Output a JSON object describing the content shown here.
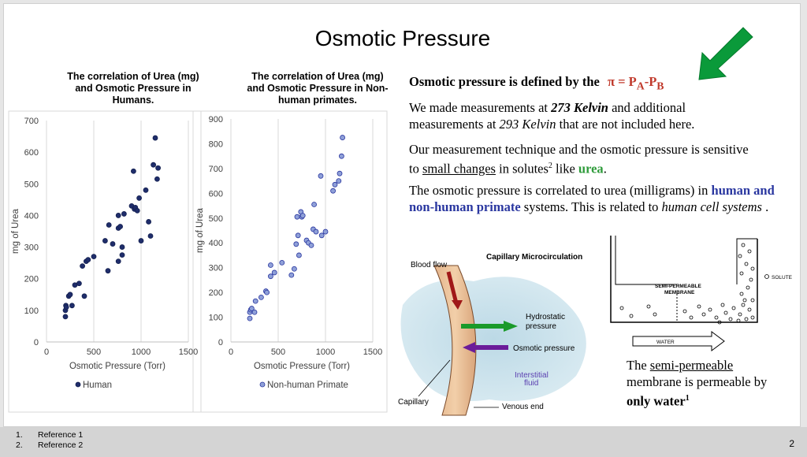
{
  "slide": {
    "title": "Osmotic Pressure",
    "page_number": "2"
  },
  "chart_data": [
    {
      "type": "scatter",
      "title": "The correlation of Urea (mg) and Osmotic Pressure in Humans.",
      "title_lines": [
        "The correlation of Urea (mg)",
        "and Osmotic Pressure in",
        "Humans."
      ],
      "xlabel": "Osmotic Pressure (Torr)",
      "ylabel": "mg of Urea",
      "xlim": [
        0,
        1500
      ],
      "ylim": [
        0,
        700
      ],
      "xticks": [
        0,
        500,
        1000,
        1500
      ],
      "yticks": [
        0,
        100,
        200,
        300,
        400,
        500,
        600,
        700
      ],
      "series": [
        {
          "name": "Human",
          "color": "#1f2d6b",
          "points": [
            [
              200,
              80
            ],
            [
              200,
              100
            ],
            [
              205,
              115
            ],
            [
              210,
              110
            ],
            [
              235,
              145
            ],
            [
              250,
              150
            ],
            [
              270,
              115
            ],
            [
              300,
              180
            ],
            [
              345,
              185
            ],
            [
              380,
              240
            ],
            [
              400,
              145
            ],
            [
              420,
              255
            ],
            [
              440,
              260
            ],
            [
              500,
              270
            ],
            [
              620,
              320
            ],
            [
              650,
              225
            ],
            [
              660,
              370
            ],
            [
              700,
              310
            ],
            [
              760,
              360
            ],
            [
              760,
              400
            ],
            [
              760,
              255
            ],
            [
              780,
              365
            ],
            [
              800,
              275
            ],
            [
              800,
              300
            ],
            [
              820,
              405
            ],
            [
              900,
              430
            ],
            [
              920,
              540
            ],
            [
              930,
              420
            ],
            [
              940,
              425
            ],
            [
              960,
              415
            ],
            [
              980,
              455
            ],
            [
              1000,
              320
            ],
            [
              1050,
              480
            ],
            [
              1080,
              380
            ],
            [
              1100,
              335
            ],
            [
              1130,
              560
            ],
            [
              1150,
              645
            ],
            [
              1170,
              515
            ],
            [
              1180,
              550
            ]
          ]
        }
      ]
    },
    {
      "type": "scatter",
      "title": "The correlation of Urea (mg) and Osmotic Pressure in Non-human primates.",
      "title_lines": [
        "The correlation of Urea (mg)",
        "and Osmotic Pressure in Non-",
        "human primates."
      ],
      "xlabel": "Osmotic Pressure (Torr)",
      "ylabel": "mg of Urea",
      "xlim": [
        0,
        1500
      ],
      "ylim": [
        0,
        900
      ],
      "xticks": [
        0,
        500,
        1000,
        1500
      ],
      "yticks": [
        0,
        100,
        200,
        300,
        400,
        500,
        600,
        700,
        800,
        900
      ],
      "series": [
        {
          "name": "Non-human Primate",
          "color": "#8fa0d8",
          "points": [
            [
              200,
              95
            ],
            [
              200,
              120
            ],
            [
              210,
              130
            ],
            [
              220,
              135
            ],
            [
              250,
              120
            ],
            [
              260,
              165
            ],
            [
              320,
              180
            ],
            [
              370,
              205
            ],
            [
              380,
              200
            ],
            [
              420,
              265
            ],
            [
              420,
              310
            ],
            [
              460,
              280
            ],
            [
              540,
              320
            ],
            [
              640,
              270
            ],
            [
              670,
              295
            ],
            [
              690,
              395
            ],
            [
              700,
              505
            ],
            [
              710,
              430
            ],
            [
              720,
              350
            ],
            [
              740,
              525
            ],
            [
              750,
              505
            ],
            [
              760,
              510
            ],
            [
              800,
              410
            ],
            [
              820,
              400
            ],
            [
              850,
              390
            ],
            [
              870,
              455
            ],
            [
              880,
              555
            ],
            [
              900,
              445
            ],
            [
              950,
              670
            ],
            [
              960,
              430
            ],
            [
              1000,
              445
            ],
            [
              1080,
              610
            ],
            [
              1100,
              635
            ],
            [
              1140,
              650
            ],
            [
              1150,
              680
            ],
            [
              1170,
              750
            ],
            [
              1180,
              825
            ]
          ]
        }
      ]
    }
  ],
  "text": {
    "definition_prefix": "Osmotic pressure is defined by the",
    "formula_pi": "π = P",
    "formula_a": "A",
    "formula_dash": "-P",
    "formula_b": "B",
    "p2_a": "We made measurements at ",
    "p2_b": "273 Kelvin",
    "p2_c": " and additional measurements at ",
    "p2_d": "293 Kelvin",
    "p2_e": " that are not included here.",
    "p3_a": "Our measurement technique and the osmotic pressure is sensitive to ",
    "p3_b": "small changes",
    "p3_c": " in solutes",
    "p3_sup": "2",
    "p3_d": " like ",
    "p3_e": "urea",
    "p3_f": ".",
    "p4_a": "The osmotic pressure is correlated to urea (milligrams) in ",
    "p4_b": "human and non-human primate",
    "p4_c": " systems. This is related to ",
    "p4_d": "human cell systems",
    "p4_e": " .",
    "cap_a": "The ",
    "cap_b": "semi-permeable",
    "cap_c": " membrane is permeable by ",
    "cap_d": "only water",
    "cap_sup": "1"
  },
  "capillary_diagram": {
    "title": "Capillary Microcirculation",
    "blood_flow": "Blood flow",
    "hydrostatic_1": "Hydrostatic",
    "hydrostatic_2": "pressure",
    "osmotic": "Osmotic pressure",
    "interstitial_1": "Interstitial",
    "interstitial_2": "fluid",
    "capillary": "Capillary",
    "venous_end": "Venous end"
  },
  "membrane_diagram": {
    "membrane_1": "SEMI-PERMEABLE",
    "membrane_2": "MEMBRANE",
    "solute": "SOLUTE",
    "water": "WATER"
  },
  "colors": {
    "formula": "#c0392b",
    "urea": "#2e9b3a",
    "primate": "#2a37a0",
    "arrow": "#0a9a3a"
  },
  "references": [
    {
      "num": "1.",
      "label": "Reference 1"
    },
    {
      "num": "2.",
      "label": "Reference 2"
    }
  ]
}
